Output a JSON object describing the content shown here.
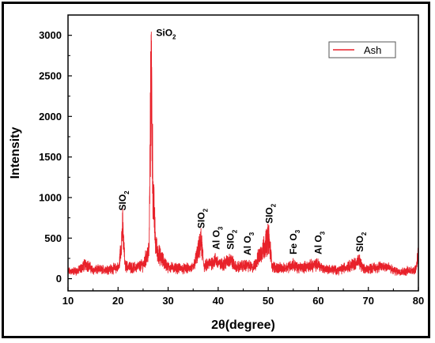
{
  "chart_data": {
    "type": "line",
    "xlabel": "2θ(degree)",
    "ylabel": "Intensity",
    "xlim": [
      10,
      80
    ],
    "ylim": [
      -150,
      3250
    ],
    "xticks": [
      10,
      20,
      30,
      40,
      50,
      60,
      70,
      80
    ],
    "yticks": [
      0,
      500,
      1000,
      1500,
      2000,
      2500,
      3000
    ],
    "legend": {
      "position": "top-right",
      "entries": [
        "Ash"
      ]
    },
    "grid": false,
    "series": [
      {
        "name": "Ash",
        "color": "#e8212a",
        "points": [
          [
            10,
            100
          ],
          [
            12,
            110
          ],
          [
            13.6,
            210
          ],
          [
            15,
            120
          ],
          [
            17,
            130
          ],
          [
            19,
            140
          ],
          [
            20.2,
            160
          ],
          [
            20.9,
            730
          ],
          [
            21.4,
            180
          ],
          [
            23,
            150
          ],
          [
            25,
            190
          ],
          [
            26.2,
            400
          ],
          [
            26.6,
            3010
          ],
          [
            27,
            1200
          ],
          [
            27.5,
            480
          ],
          [
            28,
            360
          ],
          [
            29,
            250
          ],
          [
            30,
            160
          ],
          [
            33,
            140
          ],
          [
            35,
            150
          ],
          [
            36.6,
            520
          ],
          [
            37.2,
            170
          ],
          [
            39.5,
            260
          ],
          [
            40.5,
            190
          ],
          [
            42.5,
            270
          ],
          [
            43.5,
            160
          ],
          [
            45.8,
            190
          ],
          [
            47,
            150
          ],
          [
            50.1,
            580
          ],
          [
            50.8,
            170
          ],
          [
            53,
            140
          ],
          [
            55,
            200
          ],
          [
            56,
            150
          ],
          [
            60,
            200
          ],
          [
            61,
            140
          ],
          [
            64,
            120
          ],
          [
            68.2,
            240
          ],
          [
            69,
            130
          ],
          [
            73.6,
            180
          ],
          [
            75,
            110
          ],
          [
            77,
            100
          ],
          [
            79.5,
            130
          ],
          [
            80,
            400
          ]
        ]
      }
    ],
    "annotations": [
      {
        "text": "SiO",
        "sub": "2",
        "x": 27.6,
        "y": 3000,
        "rotate": 0
      },
      {
        "text": "SIO",
        "sub": "2",
        "x": 20.9,
        "y": 800,
        "rotate": -90
      },
      {
        "text": "SIO",
        "sub": "2",
        "x": 36.6,
        "y": 580,
        "rotate": -90
      },
      {
        "text": "Al O",
        "sub": "3",
        "x": 39.6,
        "y": 320,
        "rotate": -90
      },
      {
        "text": "SIO",
        "sub": "2",
        "x": 42.5,
        "y": 320,
        "rotate": -90
      },
      {
        "text": "Al O",
        "sub": "3",
        "x": 45.9,
        "y": 250,
        "rotate": -90
      },
      {
        "text": "SIO",
        "sub": "2",
        "x": 50.2,
        "y": 640,
        "rotate": -90
      },
      {
        "text": "Fe O",
        "sub": "3",
        "x": 55.0,
        "y": 260,
        "rotate": -90
      },
      {
        "text": "Al O",
        "sub": "3",
        "x": 60.0,
        "y": 260,
        "rotate": -90
      },
      {
        "text": "SIO",
        "sub": "2",
        "x": 68.3,
        "y": 290,
        "rotate": -90
      }
    ]
  }
}
